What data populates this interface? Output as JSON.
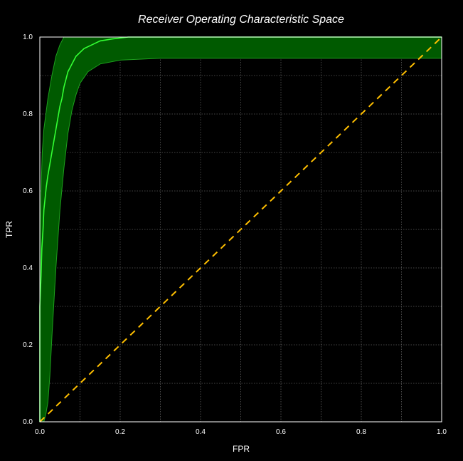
{
  "chart_data": {
    "type": "line",
    "title": "Receiver Operating Characteristic Space",
    "xlabel": "FPR",
    "ylabel": "TPR",
    "xlim": [
      0.0,
      1.0
    ],
    "ylim": [
      0.0,
      1.0
    ],
    "xticks": [
      "0.0",
      "0.2",
      "0.4",
      "0.6",
      "0.8",
      "1.0"
    ],
    "yticks": [
      "0.0",
      "0.2",
      "0.4",
      "0.6",
      "0.8",
      "1.0"
    ],
    "grid": true,
    "series": [
      {
        "style": "solid",
        "color": "#33ff33",
        "x": [
          0.0,
          0.0,
          0.003,
          0.005,
          0.008,
          0.01,
          0.013,
          0.016,
          0.02,
          0.025,
          0.03,
          0.035,
          0.04,
          0.045,
          0.05,
          0.055,
          0.06,
          0.065,
          0.07,
          0.075,
          0.08,
          0.09,
          0.1,
          0.11,
          0.13,
          0.15,
          0.18,
          0.22,
          0.3,
          0.5,
          1.0
        ],
        "y": [
          0.0,
          0.3,
          0.38,
          0.45,
          0.5,
          0.55,
          0.58,
          0.61,
          0.64,
          0.67,
          0.7,
          0.73,
          0.76,
          0.79,
          0.82,
          0.84,
          0.87,
          0.89,
          0.91,
          0.92,
          0.93,
          0.95,
          0.96,
          0.97,
          0.98,
          0.99,
          0.995,
          1.0,
          1.0,
          1.0,
          1.0
        ]
      },
      {
        "style": "dashed",
        "color": "#ffbf00",
        "x": [
          0.0,
          1.0
        ],
        "y": [
          0.0,
          1.0
        ]
      }
    ],
    "confidence_band": {
      "color": "#005a00",
      "x": [
        0.0,
        0.0,
        0.003,
        0.006,
        0.01,
        0.015,
        0.02,
        0.025,
        0.03,
        0.04,
        0.05,
        0.06,
        0.07,
        0.08,
        0.09,
        0.1,
        0.12,
        0.15,
        0.2,
        0.3,
        0.5,
        1.0
      ],
      "upper": [
        0.25,
        0.45,
        0.6,
        0.7,
        0.76,
        0.8,
        0.84,
        0.87,
        0.9,
        0.95,
        0.98,
        1.0,
        1.0,
        1.0,
        1.0,
        1.0,
        1.0,
        1.0,
        1.0,
        1.0,
        1.0,
        1.0
      ],
      "lower": [
        0.0,
        0.0,
        0.0,
        0.0,
        0.0,
        0.02,
        0.05,
        0.12,
        0.22,
        0.4,
        0.55,
        0.66,
        0.75,
        0.81,
        0.85,
        0.88,
        0.91,
        0.93,
        0.94,
        0.945,
        0.945,
        0.945
      ]
    }
  }
}
